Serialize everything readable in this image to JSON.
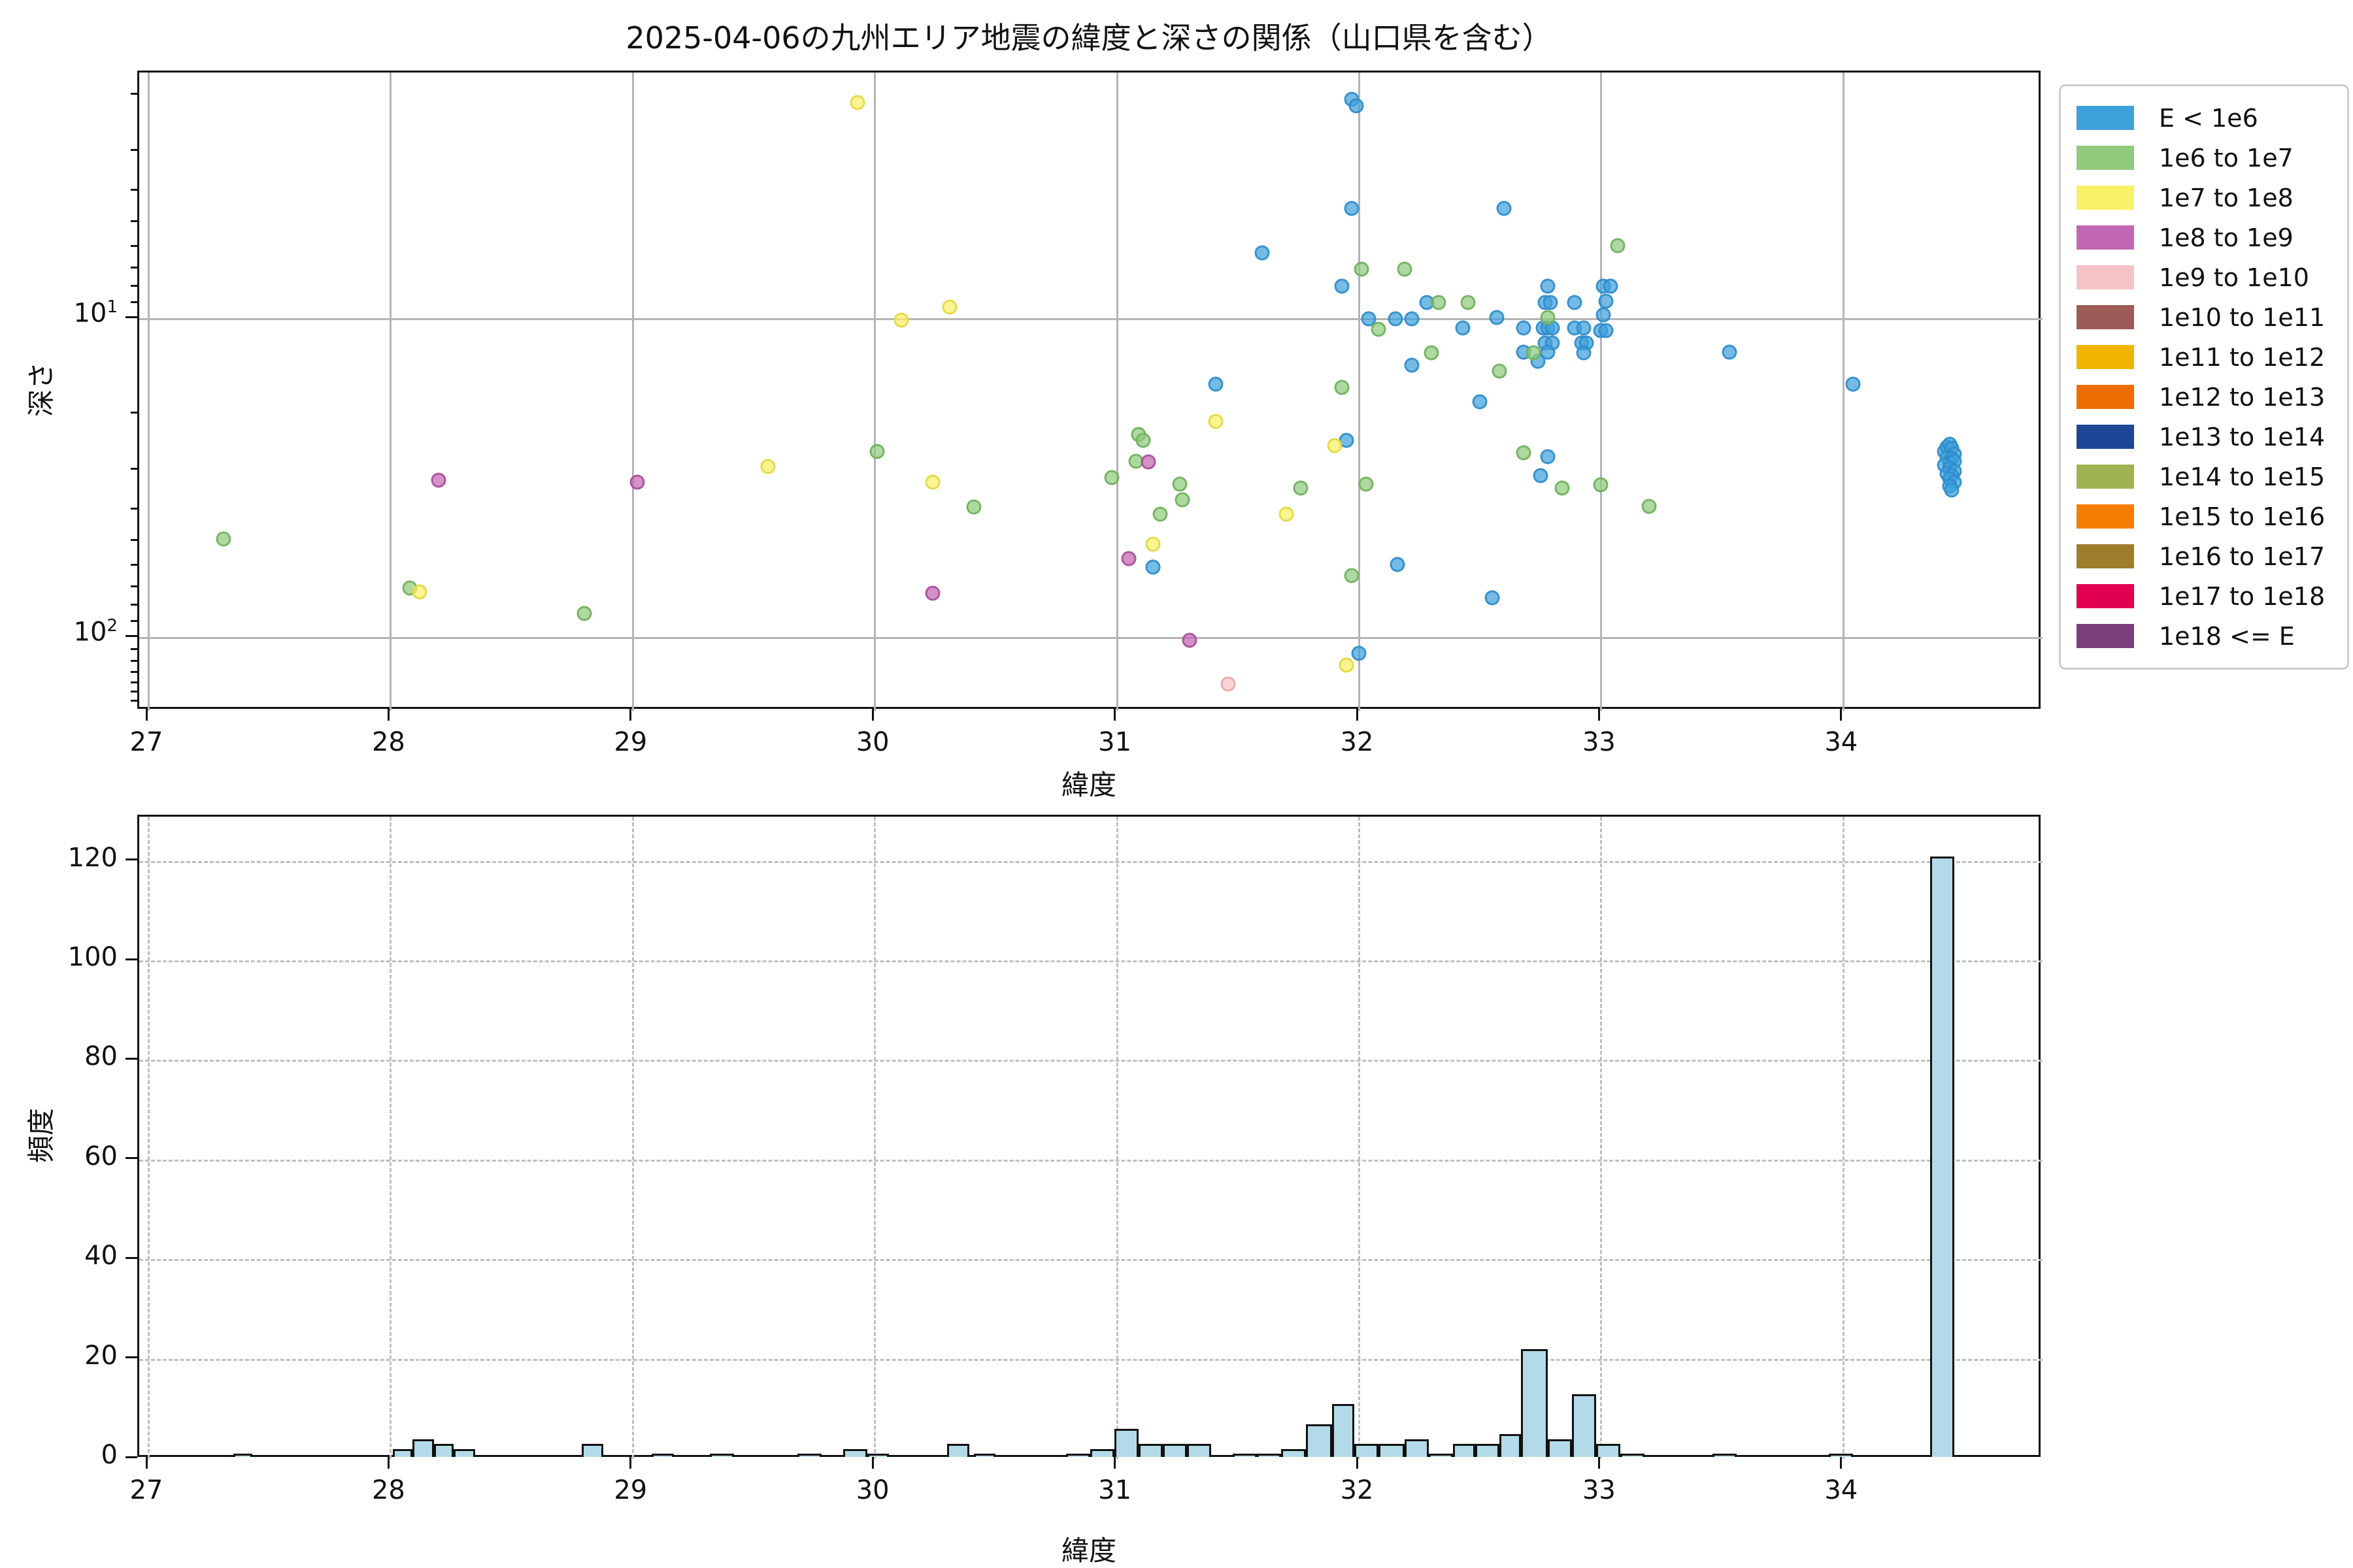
{
  "figure_title": "2025-04-06の九州エリア地震の緯度と深さの関係（山口県を含む）",
  "legend": {
    "items": [
      {
        "label": "E < 1e6",
        "color": "#3fa1db",
        "edge": "#2f8ccb"
      },
      {
        "label": "1e6 to 1e7",
        "color": "#8fca7d",
        "edge": "#6faf5b"
      },
      {
        "label": "1e7 to 1e8",
        "color": "#f9f167",
        "edge": "#e3d53f"
      },
      {
        "label": "1e8 to 1e9",
        "color": "#c166b1",
        "edge": "#a94c97"
      },
      {
        "label": "1e9 to 1e10",
        "color": "#f5c3c6",
        "edge": "#e8a7ac"
      },
      {
        "label": "1e10 to 1e11",
        "color": "#9c5b56",
        "edge": "#84453f"
      },
      {
        "label": "1e11 to 1e12",
        "color": "#f0b500",
        "edge": "#d09c00"
      },
      {
        "label": "1e12 to 1e13",
        "color": "#ee6d01",
        "edge": "#cc5a00"
      },
      {
        "label": "1e13 to 1e14",
        "color": "#1d4697",
        "edge": "#143577"
      },
      {
        "label": "1e14 to 1e15",
        "color": "#9fb351",
        "edge": "#84983c"
      },
      {
        "label": "1e15 to 1e16",
        "color": "#f57e01",
        "edge": "#d46700"
      },
      {
        "label": "1e16 to 1e17",
        "color": "#9e7d2c",
        "edge": "#826420"
      },
      {
        "label": "1e17 to 1e18",
        "color": "#e20050",
        "edge": "#b8003f"
      },
      {
        "label": "1e18 <= E",
        "color": "#7b3d7b",
        "edge": "#612d61"
      }
    ]
  },
  "chart_data": [
    {
      "type": "scatter",
      "title": "2025-04-06の九州エリア地震の緯度と深さの関係（山口県を含む）",
      "xlabel": "緯度",
      "ylabel": "深さ",
      "xlim": [
        26.96,
        34.83
      ],
      "x_ticks": [
        27,
        28,
        29,
        30,
        31,
        32,
        33,
        34
      ],
      "y_axis": "log, inverted (depth increases downward)",
      "ylim_depth": [
        1.69,
        169.8
      ],
      "y_ticks": [
        10,
        100
      ],
      "y_tick_labels": [
        "10^1",
        "10^2"
      ],
      "grid": true,
      "legend_position": "outside upper right",
      "cluster_annotation": {
        "lat": 34.44,
        "depth_range": [
          25,
          35
        ],
        "approx_count": 121,
        "series": "E < 1e6"
      },
      "series": [
        {
          "name": "E < 1e6",
          "points": [
            [
              31.15,
              60
            ],
            [
              31.41,
              16
            ],
            [
              31.6,
              6.2
            ],
            [
              31.93,
              7.9
            ],
            [
              31.95,
              24
            ],
            [
              31.97,
              2.05
            ],
            [
              31.99,
              2.15
            ],
            [
              31.97,
              4.5
            ],
            [
              32.0,
              112
            ],
            [
              32.04,
              10
            ],
            [
              32.15,
              10
            ],
            [
              32.16,
              59
            ],
            [
              32.22,
              10
            ],
            [
              32.22,
              14
            ],
            [
              32.28,
              8.9
            ],
            [
              32.43,
              10.7
            ],
            [
              32.5,
              18.2
            ],
            [
              32.55,
              75
            ],
            [
              32.57,
              9.9
            ],
            [
              32.6,
              4.5
            ],
            [
              32.68,
              10.7
            ],
            [
              32.68,
              12.7
            ],
            [
              32.74,
              13.6
            ],
            [
              32.75,
              31
            ],
            [
              32.76,
              10.7
            ],
            [
              32.77,
              8.9
            ],
            [
              32.79,
              8.9
            ],
            [
              32.78,
              7.9
            ],
            [
              32.78,
              10.7
            ],
            [
              32.8,
              10.7
            ],
            [
              32.77,
              11.9
            ],
            [
              32.8,
              11.9
            ],
            [
              32.78,
              12.7
            ],
            [
              32.78,
              27
            ],
            [
              32.89,
              8.9
            ],
            [
              32.89,
              10.7
            ],
            [
              32.93,
              10.7
            ],
            [
              32.92,
              11.9
            ],
            [
              32.94,
              11.9
            ],
            [
              32.93,
              12.8
            ],
            [
              33.01,
              7.9
            ],
            [
              33.04,
              7.9
            ],
            [
              33.02,
              8.8
            ],
            [
              33.01,
              9.7
            ],
            [
              33.0,
              10.9
            ],
            [
              33.02,
              10.9
            ],
            [
              33.53,
              12.7
            ],
            [
              34.04,
              16
            ],
            [
              34.42,
              26
            ],
            [
              34.43,
              25.2
            ],
            [
              34.44,
              24.8
            ],
            [
              34.45,
              25.5
            ],
            [
              34.46,
              26.5
            ],
            [
              34.43,
              27.2
            ],
            [
              34.45,
              27.5
            ],
            [
              34.44,
              28.2
            ],
            [
              34.46,
              28
            ],
            [
              34.42,
              28.8
            ],
            [
              34.44,
              29.5
            ],
            [
              34.46,
              30
            ],
            [
              34.43,
              30.6
            ],
            [
              34.45,
              31
            ],
            [
              34.44,
              31.8
            ],
            [
              34.46,
              32.5
            ],
            [
              34.44,
              33.5
            ],
            [
              34.45,
              34.5
            ]
          ]
        },
        {
          "name": "1e6 to 1e7",
          "points": [
            [
              27.31,
              49
            ],
            [
              28.08,
              70
            ],
            [
              28.8,
              84
            ],
            [
              30.01,
              26
            ],
            [
              30.41,
              39
            ],
            [
              30.98,
              31.5
            ],
            [
              31.08,
              28
            ],
            [
              31.09,
              23
            ],
            [
              31.11,
              24
            ],
            [
              31.18,
              41
            ],
            [
              31.26,
              33
            ],
            [
              31.27,
              37
            ],
            [
              31.76,
              34
            ],
            [
              31.93,
              16.4
            ],
            [
              31.97,
              64
            ],
            [
              32.01,
              7
            ],
            [
              32.03,
              33
            ],
            [
              32.08,
              10.8
            ],
            [
              32.19,
              7
            ],
            [
              32.3,
              12.8
            ],
            [
              32.33,
              8.9
            ],
            [
              32.45,
              8.9
            ],
            [
              32.58,
              14.6
            ],
            [
              32.68,
              26.3
            ],
            [
              32.72,
              12.8
            ],
            [
              32.78,
              9.9
            ],
            [
              32.84,
              34
            ],
            [
              33.0,
              33.2
            ],
            [
              33.07,
              5.9
            ],
            [
              33.2,
              38.7
            ]
          ]
        },
        {
          "name": "1e7 to 1e8",
          "points": [
            [
              28.12,
              72
            ],
            [
              29.56,
              29
            ],
            [
              29.93,
              2.1
            ],
            [
              30.11,
              10.1
            ],
            [
              30.31,
              9.2
            ],
            [
              30.24,
              32.5
            ],
            [
              31.15,
              51
            ],
            [
              31.41,
              21
            ],
            [
              31.7,
              41
            ],
            [
              31.9,
              25
            ],
            [
              31.95,
              122
            ]
          ]
        },
        {
          "name": "1e8 to 1e9",
          "points": [
            [
              28.2,
              32
            ],
            [
              29.02,
              32.6
            ],
            [
              30.24,
              72.5
            ],
            [
              31.05,
              56.6
            ],
            [
              31.13,
              28.1
            ],
            [
              31.3,
              102
            ]
          ]
        },
        {
          "name": "1e9 to 1e10",
          "points": [
            [
              31.46,
              140
            ]
          ]
        },
        {
          "name": "1e10 to 1e11",
          "points": []
        },
        {
          "name": "1e11 to 1e12",
          "points": []
        },
        {
          "name": "1e12 to 1e13",
          "points": []
        },
        {
          "name": "1e13 to 1e14",
          "points": []
        },
        {
          "name": "1e14 to 1e15",
          "points": []
        },
        {
          "name": "1e15 to 1e16",
          "points": []
        },
        {
          "name": "1e16 to 1e17",
          "points": []
        },
        {
          "name": "1e17 to 1e18",
          "points": []
        },
        {
          "name": "1e18 <= E",
          "points": []
        }
      ]
    },
    {
      "type": "bar",
      "title": "",
      "xlabel": "緯度",
      "ylabel": "頻度",
      "xlim": [
        26.96,
        34.83
      ],
      "x_ticks": [
        27,
        28,
        29,
        30,
        31,
        32,
        33,
        34
      ],
      "ylim": [
        0,
        129
      ],
      "y_ticks": [
        0,
        20,
        40,
        60,
        80,
        100,
        120
      ],
      "grid": "dashed",
      "bar_color": "#b2dae8",
      "bar_edge": "#111111",
      "bars": [
        {
          "left": 27.35,
          "right": 27.43,
          "count": 1
        },
        {
          "left": 28.01,
          "right": 28.09,
          "count": 2
        },
        {
          "left": 28.09,
          "right": 28.18,
          "count": 4
        },
        {
          "left": 28.18,
          "right": 28.26,
          "count": 3
        },
        {
          "left": 28.26,
          "right": 28.35,
          "count": 2
        },
        {
          "left": 28.79,
          "right": 28.88,
          "count": 3
        },
        {
          "left": 29.08,
          "right": 29.17,
          "count": 1
        },
        {
          "left": 29.32,
          "right": 29.42,
          "count": 1
        },
        {
          "left": 29.68,
          "right": 29.78,
          "count": 1
        },
        {
          "left": 29.87,
          "right": 29.97,
          "count": 2
        },
        {
          "left": 29.97,
          "right": 30.06,
          "count": 1
        },
        {
          "left": 30.3,
          "right": 30.39,
          "count": 3
        },
        {
          "left": 30.41,
          "right": 30.5,
          "count": 1
        },
        {
          "left": 30.79,
          "right": 30.89,
          "count": 1
        },
        {
          "left": 30.89,
          "right": 30.99,
          "count": 2
        },
        {
          "left": 30.99,
          "right": 31.09,
          "count": 6
        },
        {
          "left": 31.09,
          "right": 31.19,
          "count": 3
        },
        {
          "left": 31.19,
          "right": 31.29,
          "count": 3
        },
        {
          "left": 31.29,
          "right": 31.39,
          "count": 3
        },
        {
          "left": 31.48,
          "right": 31.58,
          "count": 1
        },
        {
          "left": 31.58,
          "right": 31.68,
          "count": 1
        },
        {
          "left": 31.68,
          "right": 31.78,
          "count": 2
        },
        {
          "left": 31.78,
          "right": 31.89,
          "count": 7
        },
        {
          "left": 31.89,
          "right": 31.98,
          "count": 11
        },
        {
          "left": 31.98,
          "right": 32.08,
          "count": 3
        },
        {
          "left": 32.08,
          "right": 32.19,
          "count": 3
        },
        {
          "left": 32.19,
          "right": 32.29,
          "count": 4
        },
        {
          "left": 32.29,
          "right": 32.39,
          "count": 1
        },
        {
          "left": 32.39,
          "right": 32.48,
          "count": 3
        },
        {
          "left": 32.48,
          "right": 32.58,
          "count": 3
        },
        {
          "left": 32.58,
          "right": 32.67,
          "count": 5
        },
        {
          "left": 32.67,
          "right": 32.78,
          "count": 22
        },
        {
          "left": 32.78,
          "right": 32.88,
          "count": 4
        },
        {
          "left": 32.88,
          "right": 32.98,
          "count": 13
        },
        {
          "left": 32.98,
          "right": 33.08,
          "count": 3
        },
        {
          "left": 33.08,
          "right": 33.18,
          "count": 1
        },
        {
          "left": 33.46,
          "right": 33.56,
          "count": 1
        },
        {
          "left": 33.94,
          "right": 34.04,
          "count": 1
        },
        {
          "left": 34.36,
          "right": 34.46,
          "count": 121
        }
      ]
    }
  ]
}
